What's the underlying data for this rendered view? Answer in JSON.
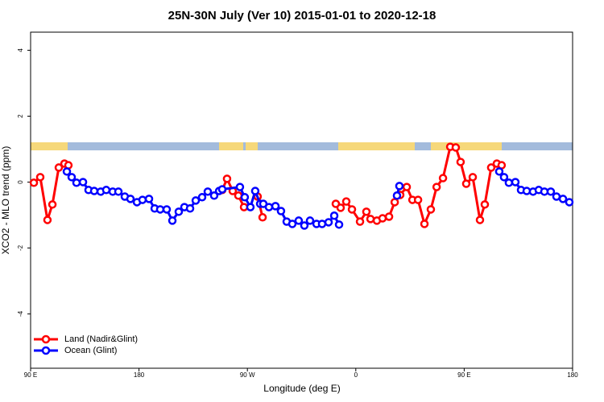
{
  "chart_data": {
    "type": "line",
    "title": "25N-30N July (Ver 10)   2015-01-01 to 2020-12-18",
    "x_label": "Longitude (deg E)",
    "y_label": "XCO2 - MLO trend (ppm)",
    "xlim": [
      90,
      540
    ],
    "xticks": [
      {
        "value": 90,
        "label": "90 E"
      },
      180,
      {
        "value": 270,
        "label": "90 W"
      },
      {
        "value": 360,
        "label": "0"
      },
      {
        "value": 450,
        "label": "90 E"
      },
      {
        "value": 540,
        "label": "180"
      }
    ],
    "ylim": [
      -5.65,
      4.55
    ],
    "yticks": [
      -4,
      -2,
      0,
      2,
      4
    ],
    "legend": "bottom-left",
    "series": [
      {
        "name": "Land (Nadir&Glint)",
        "color": "#ff0000",
        "x": [
          92.7,
          98.0,
          104.0,
          108.1,
          113.4,
          118.1,
          121.4,
          null,
          249.1,
          253.1,
          257.8,
          262.5,
          267.2,
          null,
          278.5,
          282.6,
          null,
          343.4,
          347.4,
          352.1,
          356.8,
          363.5,
          368.8,
          372.2,
          377.5,
          382.2,
          387.6,
          392.3,
          396.9,
          402.3,
          407.0,
          411.7,
          417.0,
          422.3,
          427.1,
          432.4,
          438.4,
          443.0,
          447.0,
          451.7,
          457.1,
          463.1,
          467.1,
          472.4,
          477.1,
          481.1
        ],
        "values": [
          -0.02,
          0.15,
          -1.15,
          -0.68,
          0.44,
          0.56,
          0.51,
          null,
          -0.24,
          0.1,
          -0.27,
          -0.41,
          -0.76,
          null,
          -0.44,
          -1.07,
          null,
          -0.66,
          -0.78,
          -0.59,
          -0.83,
          -1.2,
          -0.9,
          -1.12,
          -1.17,
          -1.1,
          -1.05,
          -0.61,
          -0.39,
          -0.15,
          -0.54,
          -0.54,
          -1.27,
          -0.83,
          -0.15,
          0.12,
          1.07,
          1.05,
          0.61,
          -0.05,
          0.15,
          -1.15,
          -0.68,
          0.44,
          0.56,
          0.51
        ]
      },
      {
        "name": "Ocean (Glint)",
        "color": "#0000ff",
        "x": [
          120.1,
          124.1,
          128.1,
          133.5,
          138.1,
          142.8,
          148.2,
          152.8,
          158.2,
          162.9,
          168.2,
          172.9,
          178.3,
          182.9,
          188.3,
          193.0,
          197.6,
          203.0,
          207.7,
          213.0,
          217.7,
          222.4,
          227.1,
          232.4,
          237.1,
          242.4,
          246.5,
          249.1,
          263.8,
          267.8,
          272.5,
          276.5,
          280.6,
          283.2,
          287.9,
          293.3,
          297.9,
          302.6,
          307.3,
          312.6,
          317.3,
          322.0,
          327.4,
          332.0,
          337.4,
          342.1,
          346.1,
          null,
          394.2,
          396.2,
          null,
          479.1,
          483.1,
          487.1,
          492.5,
          497.2,
          501.9,
          507.2,
          511.9,
          516.6,
          521.9,
          526.6,
          532.0,
          537.3
        ],
        "values": [
          0.32,
          0.15,
          -0.02,
          0,
          -0.24,
          -0.27,
          -0.29,
          -0.24,
          -0.29,
          -0.29,
          -0.44,
          -0.51,
          -0.61,
          -0.54,
          -0.51,
          -0.8,
          -0.83,
          -0.83,
          -1.17,
          -0.9,
          -0.76,
          -0.8,
          -0.56,
          -0.46,
          -0.29,
          -0.41,
          -0.27,
          -0.22,
          -0.15,
          -0.46,
          -0.76,
          -0.27,
          -0.66,
          -0.66,
          -0.76,
          -0.73,
          -0.88,
          -1.2,
          -1.27,
          -1.17,
          -1.32,
          -1.17,
          -1.27,
          -1.27,
          -1.22,
          -1.02,
          -1.29,
          null,
          -0.41,
          -0.12,
          null,
          0.32,
          0.15,
          -0.02,
          0,
          -0.24,
          -0.27,
          -0.29,
          -0.24,
          -0.29,
          -0.29,
          -0.44,
          -0.51,
          -0.61
        ]
      }
    ]
  }
}
